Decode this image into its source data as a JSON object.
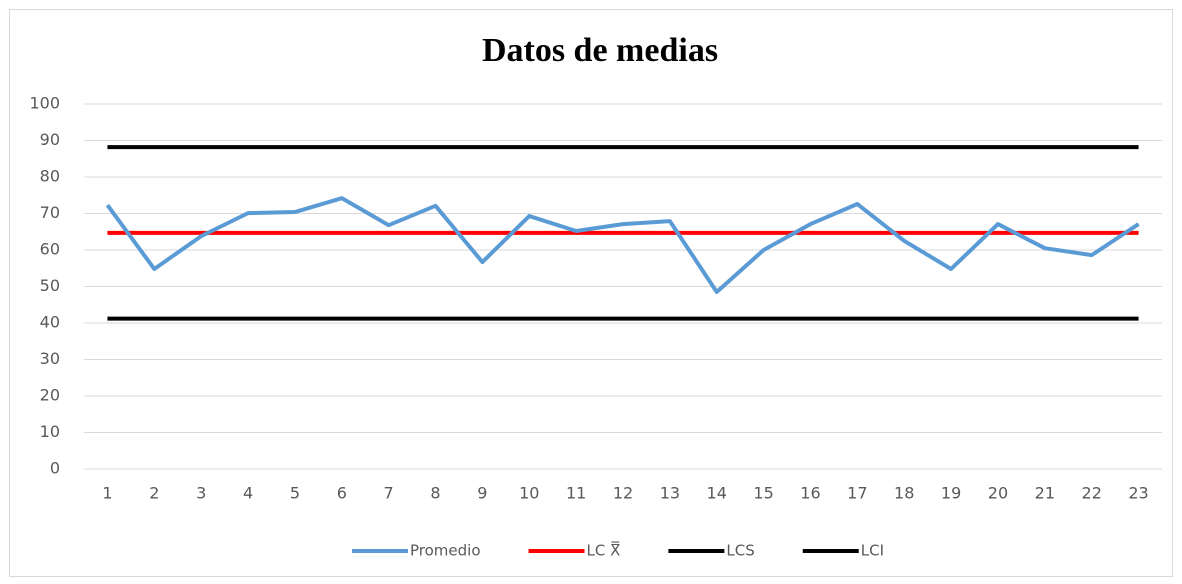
{
  "chart_data": {
    "type": "line",
    "title": "Datos de medias",
    "categories": [
      "1",
      "2",
      "3",
      "4",
      "5",
      "6",
      "7",
      "8",
      "9",
      "10",
      "11",
      "12",
      "13",
      "14",
      "15",
      "16",
      "17",
      "18",
      "19",
      "20",
      "21",
      "22",
      "23"
    ],
    "series": [
      {
        "name": "Promedio",
        "color": "#5b9bd5",
        "values": [
          72.3,
          54.8,
          63.8,
          70.1,
          70.4,
          74.2,
          66.8,
          72.1,
          56.7,
          69.3,
          65.2,
          67.1,
          67.9,
          48.5,
          60.0,
          67.1,
          72.6,
          62.5,
          54.8,
          67.1,
          60.5,
          58.6,
          67.1
        ]
      },
      {
        "name": "LC X̿",
        "color": "#ff0000",
        "values": [
          64.7,
          64.7,
          64.7,
          64.7,
          64.7,
          64.7,
          64.7,
          64.7,
          64.7,
          64.7,
          64.7,
          64.7,
          64.7,
          64.7,
          64.7,
          64.7,
          64.7,
          64.7,
          64.7,
          64.7,
          64.7,
          64.7,
          64.7
        ]
      },
      {
        "name": "LCS",
        "color": "#000000",
        "values": [
          88.2,
          88.2,
          88.2,
          88.2,
          88.2,
          88.2,
          88.2,
          88.2,
          88.2,
          88.2,
          88.2,
          88.2,
          88.2,
          88.2,
          88.2,
          88.2,
          88.2,
          88.2,
          88.2,
          88.2,
          88.2,
          88.2,
          88.2
        ]
      },
      {
        "name": "LCI",
        "color": "#000000",
        "values": [
          41.2,
          41.2,
          41.2,
          41.2,
          41.2,
          41.2,
          41.2,
          41.2,
          41.2,
          41.2,
          41.2,
          41.2,
          41.2,
          41.2,
          41.2,
          41.2,
          41.2,
          41.2,
          41.2,
          41.2,
          41.2,
          41.2,
          41.2
        ]
      }
    ],
    "ylim": [
      0,
      100
    ],
    "yticks": [
      0,
      10,
      20,
      30,
      40,
      50,
      60,
      70,
      80,
      90,
      100
    ],
    "grid": true,
    "legend": "bottom"
  }
}
